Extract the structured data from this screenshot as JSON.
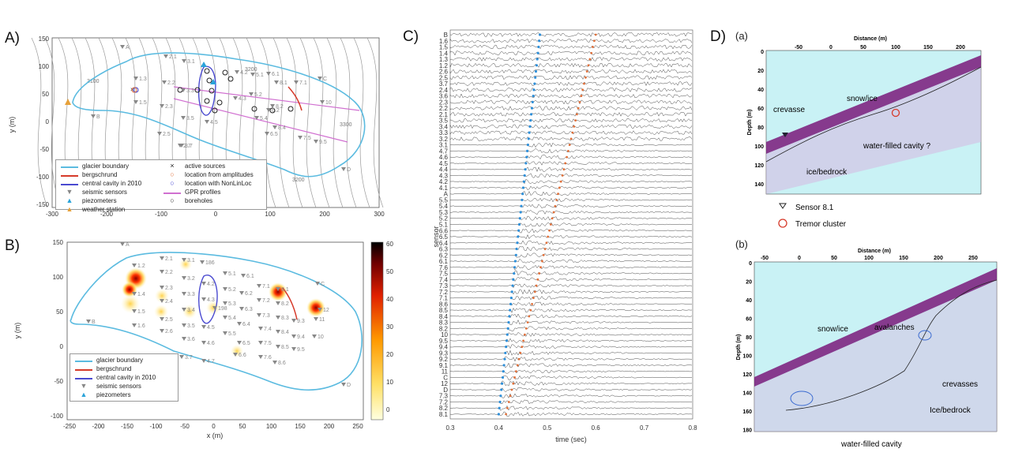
{
  "panel_labels": {
    "a": "A)",
    "b": "B)",
    "c": "C)",
    "d": "D)"
  },
  "panelA": {
    "ylabel": "y (m)",
    "xticks": [
      "-300",
      "-200",
      "-100",
      "0",
      "100",
      "200",
      "300"
    ],
    "yticks": [
      "150",
      "100",
      "50",
      "0",
      "-50",
      "-100",
      "-150"
    ],
    "contours": [
      "3100",
      "3200",
      "3300",
      "3200",
      "3000"
    ],
    "stations": [
      "A",
      "B",
      "C",
      "D",
      "1.3",
      "1.5",
      "2.1",
      "2.2",
      "2.3",
      "2.5",
      "2.7",
      "3.1",
      "3.3",
      "3.5",
      "3.7",
      "4.2",
      "4.3",
      "4.5",
      "5.1",
      "5.2",
      "5.4",
      "6.1",
      "6.2",
      "6.5",
      "7.1",
      "7.5",
      "8.1",
      "8.2",
      "8.4",
      "9.5",
      "10"
    ],
    "legend_left": [
      "glacier boundary",
      "bergschrund",
      "central cavity in 2010",
      "seismic sensors",
      "piezometers",
      "weather station"
    ],
    "legend_right": [
      "active sources",
      "location from amplitudes",
      "location with NonLinLoc",
      "GPR profiles",
      "boreholes"
    ]
  },
  "panelB": {
    "ylabel": "y (m)",
    "xlabel": "x (m)",
    "xticks": [
      "-250",
      "-200",
      "-150",
      "-100",
      "-50",
      "0",
      "50",
      "100",
      "150",
      "200",
      "250"
    ],
    "yticks": [
      "150",
      "100",
      "50",
      "0",
      "-50",
      "-100"
    ],
    "colorbar_ticks": [
      "60",
      "50",
      "40",
      "30",
      "20",
      "10",
      "0"
    ],
    "stations": [
      "A",
      "B",
      "C",
      "D",
      "1.2",
      "1.4",
      "1.5",
      "1.6",
      "2.1",
      "2.2",
      "2.3",
      "2.4",
      "2.5",
      "2.6",
      "3.1",
      "3.2",
      "3.3",
      "3.4",
      "3.5",
      "3.6",
      "3.7",
      "4.2",
      "4.3",
      "4.5",
      "4.6",
      "4.7",
      "5.1",
      "5.2",
      "5.3",
      "5.4",
      "5.5",
      "6.1",
      "6.2",
      "6.3",
      "6.4",
      "6.5",
      "6.6",
      "7.1",
      "7.2",
      "7.3",
      "7.4",
      "7.5",
      "7.6",
      "8.1",
      "8.2",
      "8.3",
      "8.4",
      "8.5",
      "8.6",
      "9.3",
      "9.4",
      "9.5",
      "10",
      "11",
      "12",
      "186",
      "198"
    ],
    "legend": [
      "glacier boundary",
      "bergschrund",
      "central cavity in 2010",
      "seismic sensors",
      "piezometers"
    ]
  },
  "panelC": {
    "ylabel": "sensor",
    "xlabel": "time (sec)",
    "xticks": [
      "0.3",
      "0.4",
      "0.5",
      "0.6",
      "0.7",
      "0.8"
    ],
    "sensors": [
      "B",
      "1.6",
      "1.5",
      "1.4",
      "1.3",
      "1.2",
      "2.6",
      "2.5",
      "3.7",
      "2.4",
      "3.6",
      "2.3",
      "2.2",
      "2.1",
      "3.5",
      "3.4",
      "3.3",
      "3.2",
      "3.1",
      "4.7",
      "4.6",
      "4.5",
      "4.4",
      "4.3",
      "4.2",
      "4.1",
      "A",
      "5.5",
      "5.4",
      "5.3",
      "5.2",
      "5.1",
      "6.6",
      "6.5",
      "6.4",
      "6.3",
      "6.2",
      "6.1",
      "7.6",
      "7.5",
      "7.4",
      "7.3",
      "7.2",
      "7.1",
      "8.6",
      "8.5",
      "8.4",
      "8.3",
      "8.2",
      "10",
      "9.5",
      "9.4",
      "9.3",
      "9.2",
      "9.1",
      "11",
      "C",
      "12",
      "D",
      "7.3",
      "7.2",
      "8.2",
      "8.1"
    ]
  },
  "panelD": {
    "a": {
      "tag": "(a)",
      "xtitle": "Distance (m)",
      "ytitle": "Depth (m)",
      "xticks": [
        "-50",
        "0",
        "50",
        "100",
        "150",
        "200"
      ],
      "yticks": [
        "0",
        "20",
        "40",
        "60",
        "80",
        "100",
        "120",
        "140"
      ],
      "annotations": [
        "snow/ice",
        "crevasse",
        "water-filled cavity ?",
        "ice/bedrock"
      ]
    },
    "legend": [
      "Sensor 8.1",
      "Tremor cluster"
    ],
    "b": {
      "tag": "(b)",
      "xtitle": "Distance (m)",
      "ytitle": "Depth (m)",
      "xticks": [
        "-50",
        "0",
        "50",
        "100",
        "150",
        "200",
        "250"
      ],
      "yticks": [
        "0",
        "20",
        "40",
        "60",
        "80",
        "100",
        "120",
        "140",
        "160",
        "180"
      ],
      "annotations": [
        "snow/ice",
        "avalanches",
        "crevasses",
        "Ice/bedrock",
        "water-filled cavity"
      ]
    }
  },
  "colors": {
    "glacier": "#5bbbe0",
    "bergschrund": "#d63a2a",
    "cavity": "#4a4ad0",
    "gpr": "#d070d0",
    "pickBlue": "#2f8fd8",
    "pickOrange": "#e0703a",
    "radarBg": "#c9f2f5",
    "radarPurple": "#7a1a7a"
  }
}
